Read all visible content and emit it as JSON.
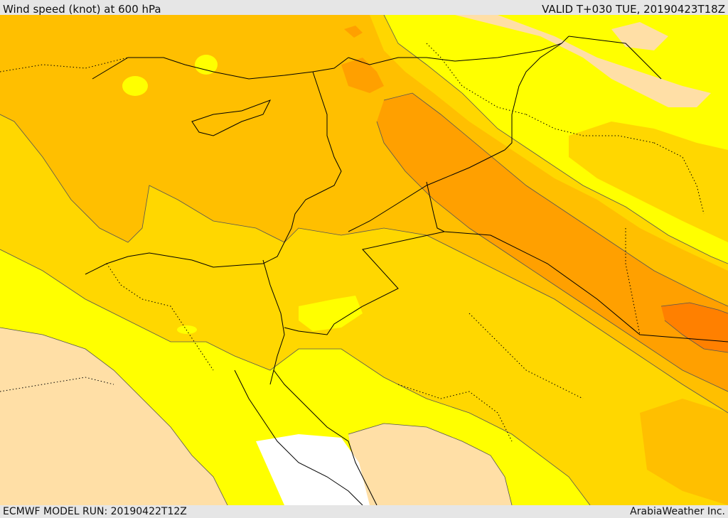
{
  "header": {
    "title": "Wind speed (knot) at 600 hPa",
    "valid": "VALID T+030 TUE, 20190423T18Z"
  },
  "footer": {
    "model_run": "ECMWF MODEL RUN: 20190422T12Z",
    "credit": "ArabiaWeather Inc."
  },
  "palette": {
    "band_0": "#ffffff",
    "band_1": "#ffdfa6",
    "band_2": "#ffff00",
    "band_3": "#ffd700",
    "band_4": "#ffbf00",
    "band_5": "#ffa000",
    "band_6": "#ff8000",
    "coast": "#000000",
    "contour": "#555555"
  }
}
